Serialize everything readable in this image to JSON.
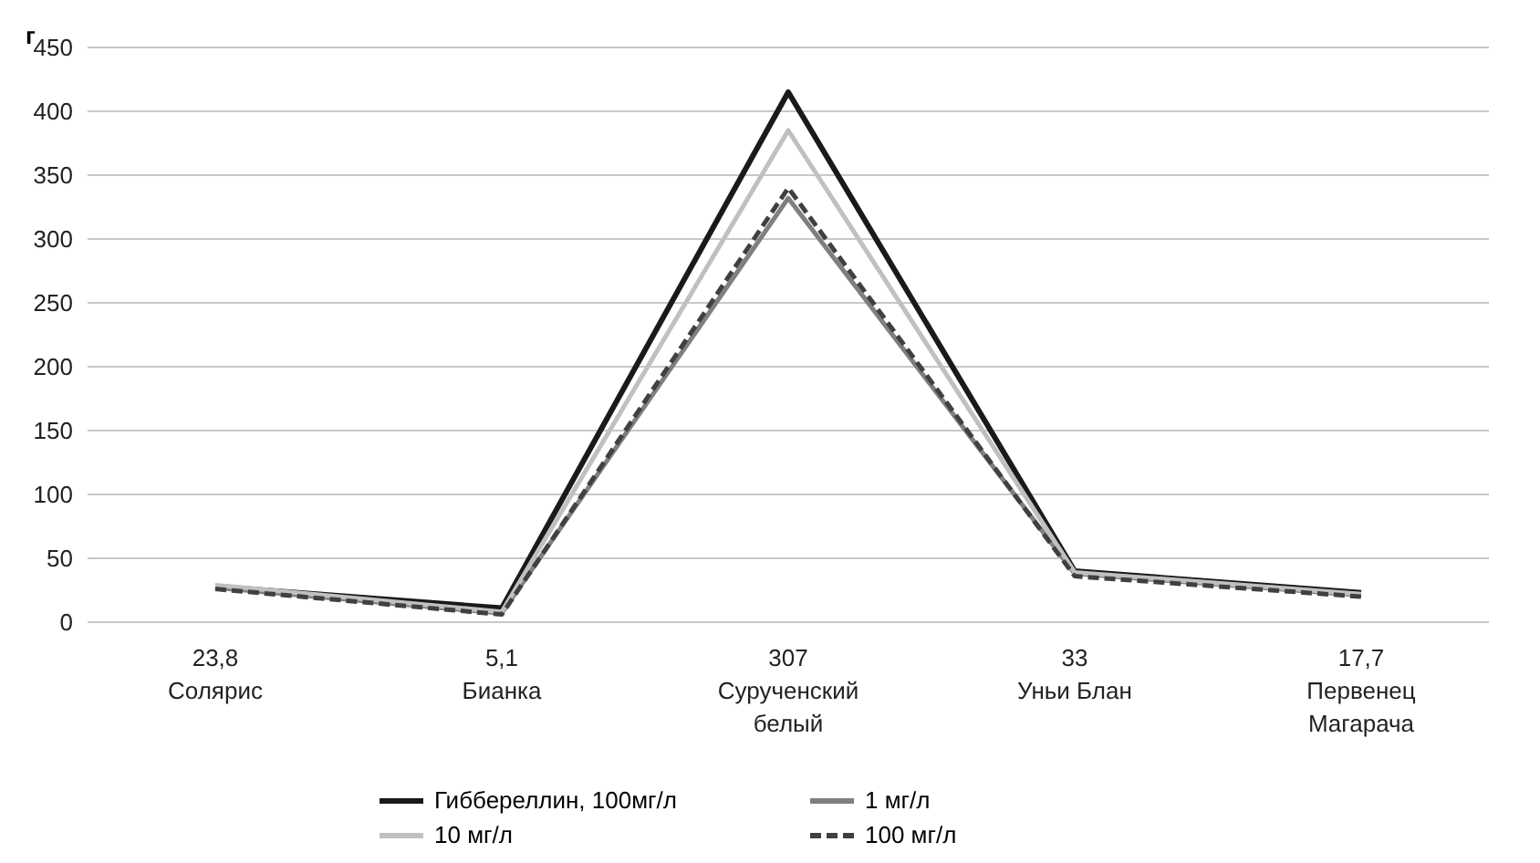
{
  "chart_data": {
    "type": "line",
    "ylabel": "г",
    "categories": [
      "23,8\n\nСолярис",
      "5,1\n\nБианка",
      "307\n\nСурученский\nбелый",
      "33\n\nУньи Блан",
      "17,7\n\nПервенец\nМагарача"
    ],
    "series": [
      {
        "name": "Гиббереллин, 100мг/л",
        "color": "#1a1a1a",
        "values": [
          28,
          11,
          415,
          40,
          23
        ]
      },
      {
        "name": "1 мг/л",
        "color": "#7f7f7f",
        "values": [
          27,
          7,
          332,
          38,
          21
        ]
      },
      {
        "name": "10 мг/л",
        "color": "#c0c0c0",
        "values": [
          29,
          8,
          385,
          39,
          22
        ]
      },
      {
        "name": "100 мг/л",
        "color": "#404040",
        "line_style": "dashed",
        "values": [
          26,
          6,
          340,
          36,
          20
        ]
      }
    ],
    "ylim": [
      0,
      450
    ],
    "yticks": [
      0,
      50,
      100,
      150,
      200,
      250,
      300,
      350,
      400,
      450
    ],
    "grid": "y",
    "legend": "bottom",
    "marker": "none"
  }
}
